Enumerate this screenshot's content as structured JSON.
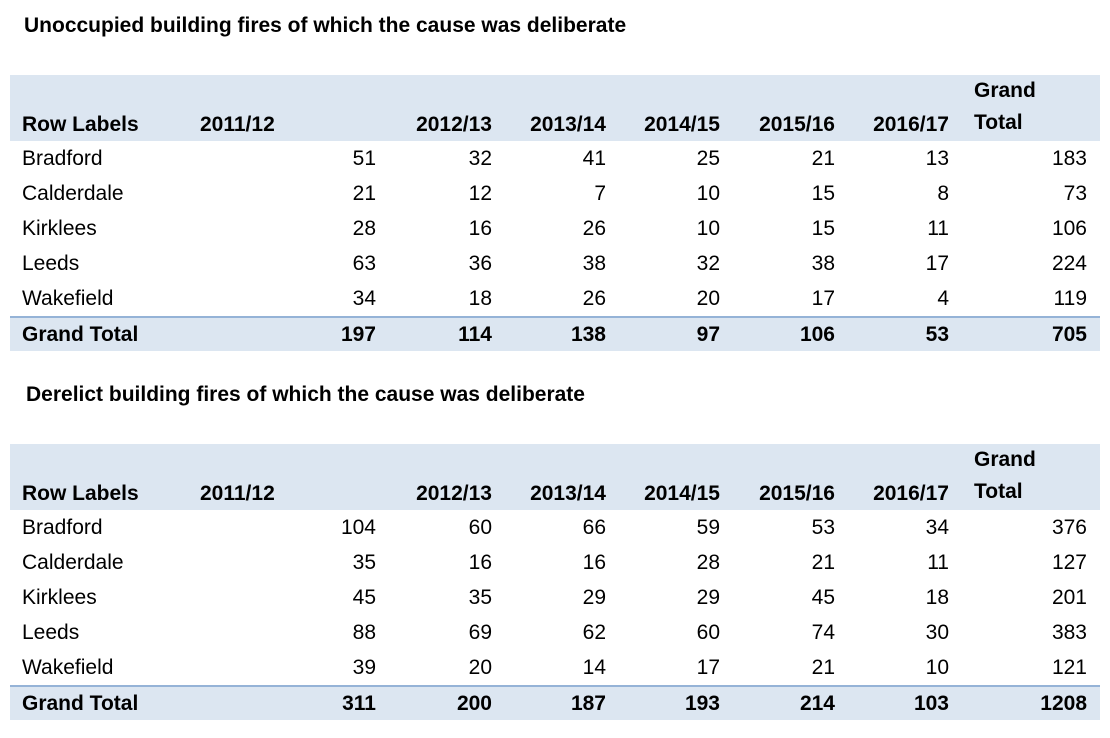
{
  "tables": [
    {
      "title": "Unoccupied building fires of which the cause was deliberate",
      "header": {
        "row_labels": "Row Labels",
        "years": [
          "2011/12",
          "2012/13",
          "2013/14",
          "2014/15",
          "2015/16",
          "2016/17"
        ],
        "grand_total_line1": "Grand",
        "grand_total_line2": "Total"
      },
      "rows": [
        {
          "label": "Bradford",
          "values": [
            "51",
            "32",
            "41",
            "25",
            "21",
            "13",
            "183"
          ]
        },
        {
          "label": "Calderdale",
          "values": [
            "21",
            "12",
            "7",
            "10",
            "15",
            "8",
            "73"
          ]
        },
        {
          "label": "Kirklees",
          "values": [
            "28",
            "16",
            "26",
            "10",
            "15",
            "11",
            "106"
          ]
        },
        {
          "label": "Leeds",
          "values": [
            "63",
            "36",
            "38",
            "32",
            "38",
            "17",
            "224"
          ]
        },
        {
          "label": "Wakefield",
          "values": [
            "34",
            "18",
            "26",
            "20",
            "17",
            "4",
            "119"
          ]
        }
      ],
      "total": {
        "label": "Grand Total",
        "values": [
          "197",
          "114",
          "138",
          "97",
          "106",
          "53",
          "705"
        ]
      }
    },
    {
      "title": "Derelict building fires of which the cause was deliberate",
      "header": {
        "row_labels": "Row Labels",
        "years": [
          "2011/12",
          "2012/13",
          "2013/14",
          "2014/15",
          "2015/16",
          "2016/17"
        ],
        "grand_total_line1": "Grand",
        "grand_total_line2": "Total"
      },
      "rows": [
        {
          "label": "Bradford",
          "values": [
            "104",
            "60",
            "66",
            "59",
            "53",
            "34",
            "376"
          ]
        },
        {
          "label": "Calderdale",
          "values": [
            "35",
            "16",
            "16",
            "28",
            "21",
            "11",
            "127"
          ]
        },
        {
          "label": "Kirklees",
          "values": [
            "45",
            "35",
            "29",
            "29",
            "45",
            "18",
            "201"
          ]
        },
        {
          "label": "Leeds",
          "values": [
            "88",
            "69",
            "62",
            "60",
            "74",
            "30",
            "383"
          ]
        },
        {
          "label": "Wakefield",
          "values": [
            "39",
            "20",
            "14",
            "17",
            "21",
            "10",
            "121"
          ]
        }
      ],
      "total": {
        "label": "Grand Total",
        "values": [
          "311",
          "200",
          "187",
          "193",
          "214",
          "103",
          "1208"
        ]
      }
    }
  ],
  "colors": {
    "header_fill": "#dce6f1",
    "total_border": "#95b3d7"
  }
}
